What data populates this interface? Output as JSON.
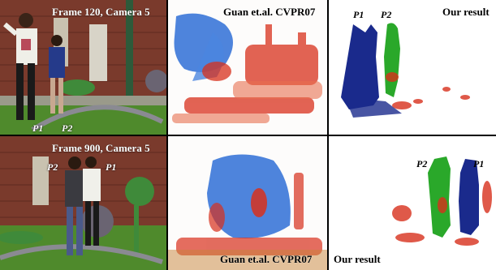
{
  "row1": {
    "photo_caption": "Frame 120, Camera 5",
    "guan_caption": "Guan et.al. CVPR07",
    "ours_caption": "Our result",
    "photo_labels": [
      "P1",
      "P2"
    ],
    "ours_labels": [
      "P1",
      "P2"
    ]
  },
  "row2": {
    "photo_caption": "Frame 900, Camera 5",
    "guan_caption": "Guan et.al. CVPR07",
    "ours_caption": "Our result",
    "photo_labels": [
      "P2",
      "P1"
    ],
    "ours_labels": [
      "P2",
      "P1"
    ]
  },
  "colors": {
    "person1": "#1a2a8c",
    "person2": "#2aa82a",
    "noise": "#d8301c",
    "guan_blue": "#2f6fd6",
    "brick": "#8a4030",
    "grass": "#4f8a2c"
  }
}
